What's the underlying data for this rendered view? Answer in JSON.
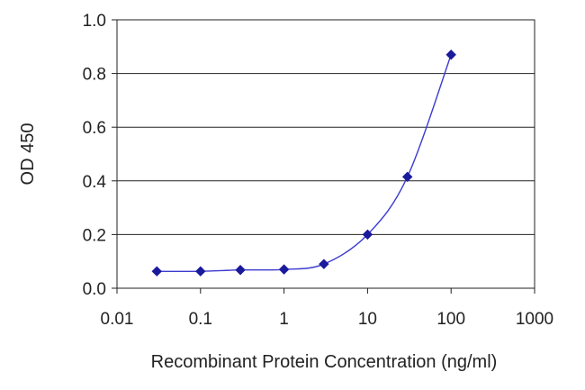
{
  "chart_data": {
    "type": "line",
    "title": "",
    "xlabel": "Recombinant Protein Concentration (ng/ml)",
    "ylabel": "OD 450",
    "x_scale": "log",
    "xlim": [
      0.01,
      1000
    ],
    "ylim": [
      0.0,
      1.0
    ],
    "x_ticks": [
      0.01,
      0.1,
      1,
      10,
      100,
      1000
    ],
    "x_tick_labels": [
      "0.01",
      "0.1",
      "1",
      "10",
      "100",
      "1000"
    ],
    "y_ticks": [
      0.0,
      0.2,
      0.4,
      0.6,
      0.8,
      1.0
    ],
    "y_tick_labels": [
      "0.0",
      "0.2",
      "0.4",
      "0.6",
      "0.8",
      "1.0"
    ],
    "grid": "horizontal",
    "legend": "none",
    "series": [
      {
        "x": [
          0.03,
          0.1,
          0.3,
          1,
          3,
          10,
          30,
          100
        ],
        "y": [
          0.063,
          0.063,
          0.068,
          0.07,
          0.09,
          0.2,
          0.415,
          0.87
        ],
        "color": "#1a1a9c",
        "marker": "diamond"
      }
    ]
  }
}
